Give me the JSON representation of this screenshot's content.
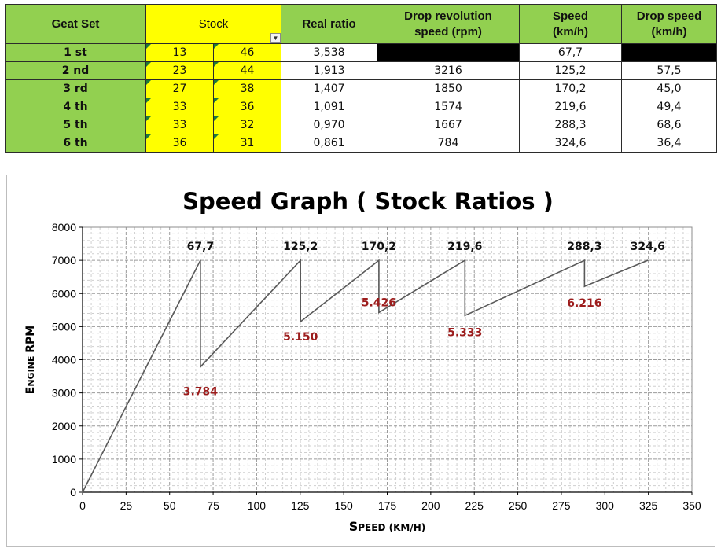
{
  "table": {
    "headers": {
      "gear_set": "Geat Set",
      "stock": "Stock",
      "real_ratio": "Real ratio",
      "drop_rev_line1": "Drop revolution",
      "drop_rev_line2": "speed (rpm)",
      "speed_line1": "Speed",
      "speed_line2": "(km/h)",
      "drop_speed_line1": "Drop speed",
      "drop_speed_line2": "(km/h)"
    },
    "rows": [
      {
        "gear": "1 st",
        "teeth_a": "13",
        "teeth_b": "46",
        "ratio": "3,538",
        "drop_rpm": "",
        "speed": "67,7",
        "drop_speed": ""
      },
      {
        "gear": "2 nd",
        "teeth_a": "23",
        "teeth_b": "44",
        "ratio": "1,913",
        "drop_rpm": "3216",
        "speed": "125,2",
        "drop_speed": "57,5"
      },
      {
        "gear": "3 rd",
        "teeth_a": "27",
        "teeth_b": "38",
        "ratio": "1,407",
        "drop_rpm": "1850",
        "speed": "170,2",
        "drop_speed": "45,0"
      },
      {
        "gear": "4 th",
        "teeth_a": "33",
        "teeth_b": "36",
        "ratio": "1,091",
        "drop_rpm": "1574",
        "speed": "219,6",
        "drop_speed": "49,4"
      },
      {
        "gear": "5 th",
        "teeth_a": "33",
        "teeth_b": "32",
        "ratio": "0,970",
        "drop_rpm": "1667",
        "speed": "288,3",
        "drop_speed": "68,6"
      },
      {
        "gear": "6 th",
        "teeth_a": "36",
        "teeth_b": "31",
        "ratio": "0,861",
        "drop_rpm": "784",
        "speed": "324,6",
        "drop_speed": "36,4"
      }
    ],
    "colors": {
      "header_green": "#92d050",
      "stock_yellow": "#ffff00",
      "black_cell": "#000000"
    }
  },
  "chart_data": {
    "type": "line",
    "title": "Speed Graph  ( Stock Ratios )",
    "xlabel": "Speed (km/h)",
    "ylabel": "Engine RPM",
    "xlim": [
      0,
      350
    ],
    "ylim": [
      0,
      8000
    ],
    "x_ticks": [
      0,
      25,
      50,
      75,
      100,
      125,
      150,
      175,
      200,
      225,
      250,
      275,
      300,
      325,
      350
    ],
    "y_ticks": [
      0,
      1000,
      2000,
      3000,
      4000,
      5000,
      6000,
      7000,
      8000
    ],
    "grid": true,
    "line_color": "#595959",
    "series": [
      {
        "points": [
          {
            "x": 0,
            "y": 0
          },
          {
            "x": 67.7,
            "y": 7000
          },
          {
            "x": 67.7,
            "y": 3784
          },
          {
            "x": 125.2,
            "y": 7000
          },
          {
            "x": 125.2,
            "y": 5150
          },
          {
            "x": 170.2,
            "y": 7000
          },
          {
            "x": 170.2,
            "y": 5426
          },
          {
            "x": 219.6,
            "y": 7000
          },
          {
            "x": 219.6,
            "y": 5333
          },
          {
            "x": 288.3,
            "y": 7000
          },
          {
            "x": 288.3,
            "y": 6216
          },
          {
            "x": 324.6,
            "y": 7000
          }
        ]
      }
    ],
    "peak_labels": [
      {
        "text": "67,7",
        "x": 67.7,
        "y": 7000
      },
      {
        "text": "125,2",
        "x": 125.2,
        "y": 7000
      },
      {
        "text": "170,2",
        "x": 170.2,
        "y": 7000
      },
      {
        "text": "219,6",
        "x": 219.6,
        "y": 7000
      },
      {
        "text": "288,3",
        "x": 288.3,
        "y": 7000
      },
      {
        "text": "324,6",
        "x": 324.6,
        "y": 7000
      }
    ],
    "drop_labels": [
      {
        "text": "3.784",
        "x": 67.7,
        "y": 3784
      },
      {
        "text": "5.150",
        "x": 125.2,
        "y": 5150
      },
      {
        "text": "5.426",
        "x": 170.2,
        "y": 5426
      },
      {
        "text": "5.333",
        "x": 219.6,
        "y": 5333
      },
      {
        "text": "6.216",
        "x": 288.3,
        "y": 6216
      }
    ],
    "drop_label_color": "#9c1c1c"
  }
}
